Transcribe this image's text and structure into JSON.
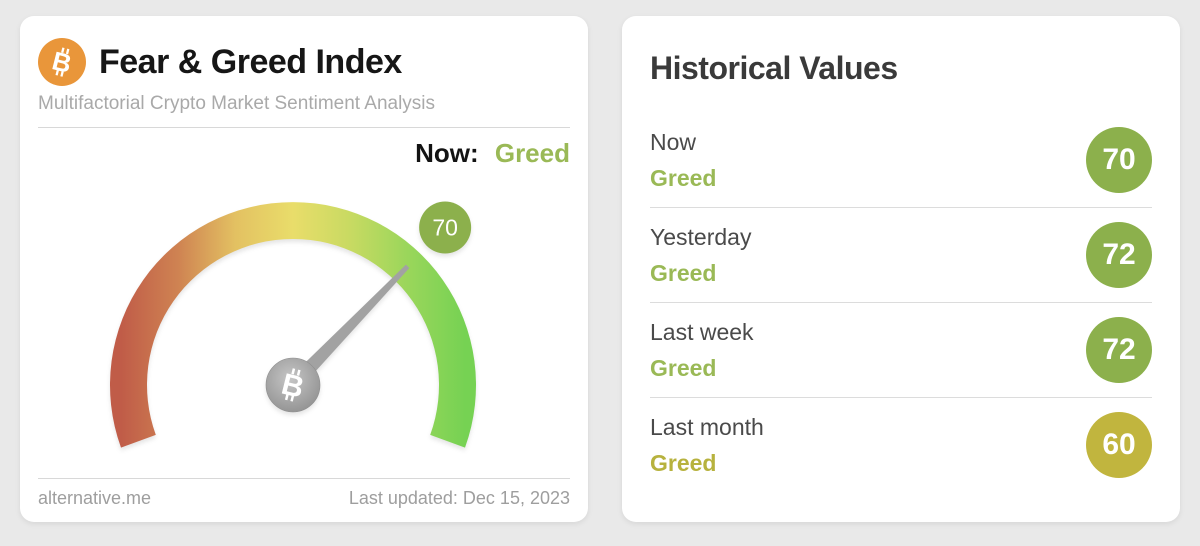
{
  "gauge_card": {
    "title": "Fear & Greed Index",
    "subtitle": "Multifactorial Crypto Market Sentiment Analysis",
    "now_label": "Now:",
    "now_sentiment": "Greed",
    "footer_left": "alternative.me",
    "footer_right": "Last updated: Dec 15, 2023"
  },
  "chart_data": {
    "type": "gauge",
    "title": "Fear & Greed Index",
    "value": 70,
    "min": 0,
    "max": 100,
    "classification": "Greed",
    "arc_span_deg": 220,
    "arc_start_deg": 200,
    "arc_end_deg": -20,
    "gradient": [
      "#c05c48",
      "#cf8352",
      "#e3c162",
      "#e9dd6a",
      "#c8da62",
      "#9ad65b",
      "#76d253"
    ],
    "badge_color": "#8cb04c",
    "needle_color": "#a2a2a2",
    "historical": [
      {
        "label": "Now",
        "value": 70,
        "classification": "Greed"
      },
      {
        "label": "Yesterday",
        "value": 72,
        "classification": "Greed"
      },
      {
        "label": "Last week",
        "value": 72,
        "classification": "Greed"
      },
      {
        "label": "Last month",
        "value": 60,
        "classification": "Greed"
      }
    ]
  },
  "historical": {
    "title": "Historical Values",
    "rows": [
      {
        "label": "Now",
        "sentiment": "Greed",
        "value": "70",
        "badge_color": "#8cb04c",
        "sentiment_color": "#9ab956"
      },
      {
        "label": "Yesterday",
        "sentiment": "Greed",
        "value": "72",
        "badge_color": "#8cb04c",
        "sentiment_color": "#9ab956"
      },
      {
        "label": "Last week",
        "sentiment": "Greed",
        "value": "72",
        "badge_color": "#8cb04c",
        "sentiment_color": "#9ab956"
      },
      {
        "label": "Last month",
        "sentiment": "Greed",
        "value": "60",
        "badge_color": "#c1b53e",
        "sentiment_color": "#b7b23e"
      }
    ]
  },
  "colors": {
    "page_background": "#e9e9e9",
    "greed_green": "#9ab956",
    "badge_green": "#8cb04c",
    "badge_olive": "#c1b53e",
    "bitcoin_orange": "#e9963a"
  }
}
